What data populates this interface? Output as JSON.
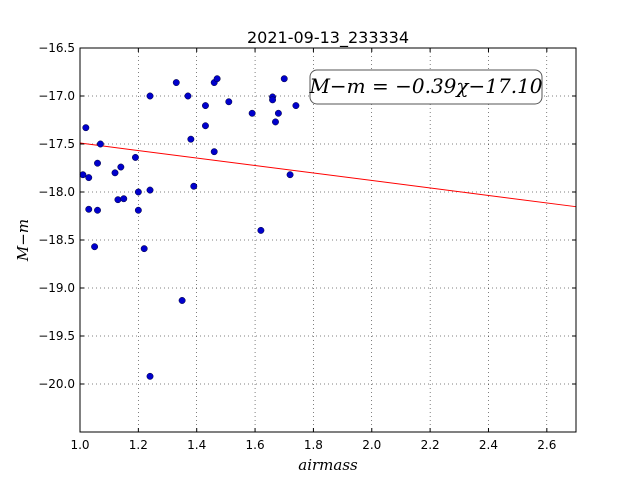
{
  "chart_data": {
    "type": "scatter",
    "title": "2021-09-13_233334",
    "xlabel": "airmass",
    "ylabel": "M−m",
    "xlim": [
      1.0,
      2.7
    ],
    "ylim": [
      -20.5,
      -16.5
    ],
    "y_inverted": true,
    "grid": true,
    "grid_style": "dotted",
    "xticks": [
      "1.0",
      "1.2",
      "1.4",
      "1.6",
      "1.8",
      "2.0",
      "2.2",
      "2.4",
      "2.6"
    ],
    "xtick_values": [
      1.0,
      1.2,
      1.4,
      1.6,
      1.8,
      2.0,
      2.2,
      2.4,
      2.6
    ],
    "yticks": [
      "−16.5",
      "−17.0",
      "−17.5",
      "−18.0",
      "−18.5",
      "−19.0",
      "−19.5",
      "−20.0"
    ],
    "ytick_values": [
      -16.5,
      -17.0,
      -17.5,
      -18.0,
      -18.5,
      -19.0,
      -19.5,
      -20.0
    ],
    "point_color": "#0000cc",
    "fit_color": "#ff0000",
    "fit": {
      "slope": -0.39,
      "intercept": -17.1,
      "label": "M−m = −0.39χ−17.10"
    },
    "points": [
      {
        "x": 1.01,
        "y": -17.82
      },
      {
        "x": 1.02,
        "y": -17.33
      },
      {
        "x": 1.03,
        "y": -17.85
      },
      {
        "x": 1.03,
        "y": -18.18
      },
      {
        "x": 1.05,
        "y": -18.57
      },
      {
        "x": 1.06,
        "y": -18.19
      },
      {
        "x": 1.06,
        "y": -17.7
      },
      {
        "x": 1.07,
        "y": -17.5
      },
      {
        "x": 1.12,
        "y": -17.8
      },
      {
        "x": 1.13,
        "y": -18.08
      },
      {
        "x": 1.14,
        "y": -17.74
      },
      {
        "x": 1.15,
        "y": -18.07
      },
      {
        "x": 1.19,
        "y": -17.64
      },
      {
        "x": 1.2,
        "y": -18.19
      },
      {
        "x": 1.2,
        "y": -18.0
      },
      {
        "x": 1.22,
        "y": -18.59
      },
      {
        "x": 1.24,
        "y": -17.98
      },
      {
        "x": 1.24,
        "y": -17.0
      },
      {
        "x": 1.24,
        "y": -19.92
      },
      {
        "x": 1.33,
        "y": -16.86
      },
      {
        "x": 1.35,
        "y": -19.13
      },
      {
        "x": 1.37,
        "y": -17.0
      },
      {
        "x": 1.38,
        "y": -17.45
      },
      {
        "x": 1.39,
        "y": -17.94
      },
      {
        "x": 1.43,
        "y": -17.1
      },
      {
        "x": 1.43,
        "y": -17.31
      },
      {
        "x": 1.46,
        "y": -17.58
      },
      {
        "x": 1.46,
        "y": -16.86
      },
      {
        "x": 1.47,
        "y": -16.82
      },
      {
        "x": 1.51,
        "y": -17.06
      },
      {
        "x": 1.59,
        "y": -17.18
      },
      {
        "x": 1.62,
        "y": -18.4
      },
      {
        "x": 1.66,
        "y": -17.01
      },
      {
        "x": 1.66,
        "y": -17.04
      },
      {
        "x": 1.67,
        "y": -17.27
      },
      {
        "x": 1.68,
        "y": -17.18
      },
      {
        "x": 1.7,
        "y": -16.82
      },
      {
        "x": 1.72,
        "y": -17.82
      },
      {
        "x": 1.74,
        "y": -17.1
      }
    ]
  }
}
